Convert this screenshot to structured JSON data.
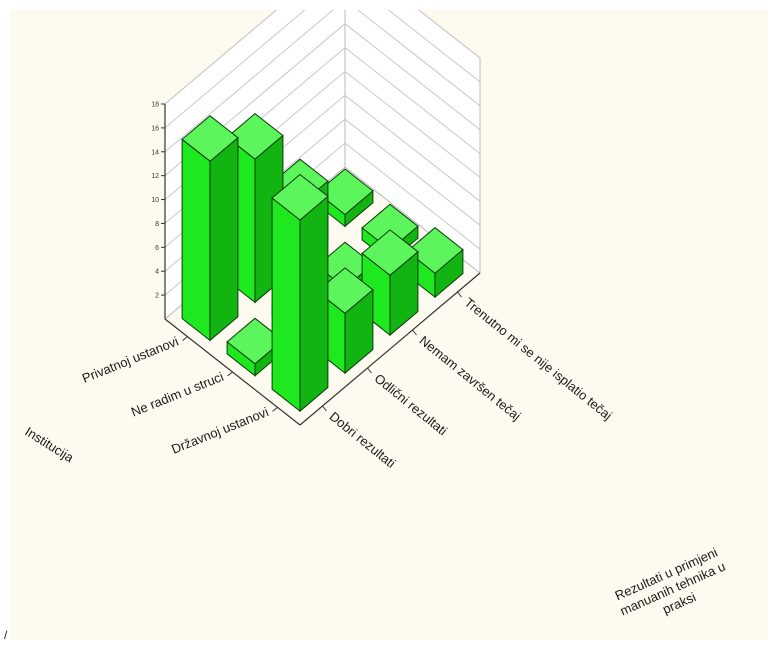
{
  "chart_data": {
    "type": "bar3d",
    "x_axis_title": "Institucija",
    "y_axis_title": "Rezultati u primjeni manuanih tehnika u praksi",
    "x_categories": [
      "Privatnoj ustanovi",
      "Ne radim u struci",
      "Državnoj ustanovi"
    ],
    "y_categories": [
      "Dobri rezultati",
      "Odlični rezultati",
      "Nemam završen tečaj",
      "Trenutno mi se nije isplatio tečaj"
    ],
    "z_ticks": [
      2,
      4,
      6,
      8,
      10,
      12,
      14,
      16,
      18
    ],
    "zlim": [
      0,
      18
    ],
    "grid": true,
    "bar_color": "#1ee81e",
    "values": [
      [
        15,
        12,
        5,
        1
      ],
      [
        1,
        1,
        1,
        1
      ],
      [
        16,
        5,
        5,
        2
      ]
    ]
  },
  "stray_mark": "/"
}
